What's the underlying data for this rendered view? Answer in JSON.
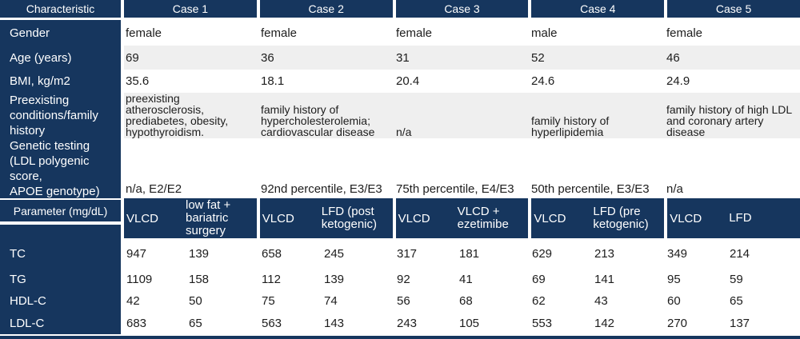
{
  "colors": {
    "navy": "#16365e",
    "stripe": "#efefef",
    "text": "#1d1d1d",
    "background": "#ffffff"
  },
  "chart_data": {
    "type": "table",
    "columns": [
      "Characteristic",
      "Case 1",
      "Case 2",
      "Case 3",
      "Case 4",
      "Case 5"
    ],
    "characteristic_rows": [
      {
        "label": "Gender",
        "values": [
          "female",
          "female",
          "female",
          "male",
          "female"
        ]
      },
      {
        "label": "Age (years)",
        "values": [
          "69",
          "36",
          "31",
          "52",
          "46"
        ]
      },
      {
        "label": "BMI, kg/m2",
        "values": [
          "35.6",
          "18.1",
          "20.4",
          "24.6",
          "24.9"
        ]
      },
      {
        "label": "Preexisting\nconditions/family\nhistory",
        "values": [
          "preexisting\natherosclerosis,\nprediabetes, obesity,\nhypothyroidism.",
          "family history of\nhypercholesterolemia;\ncardiovascular disease",
          "n/a",
          "family history of\nhyperlipidemia",
          "family history of high LDL\nand coronary artery disease"
        ]
      },
      {
        "label": "Genetic testing\n(LDL polygenic score,\nAPOE genotype)",
        "values": [
          "n/a, E2/E2",
          "92nd percentile, E3/E3",
          "75th percentile, E4/E3",
          "50th percentile, E3/E3",
          "n/a"
        ]
      }
    ],
    "parameter_header": {
      "label": "Parameter (mg/dL)",
      "groups": [
        {
          "sub1": "VLCD",
          "sub2": "low fat +\nbariatric\nsurgery"
        },
        {
          "sub1": "VLCD",
          "sub2": "LFD (post\nketogenic)"
        },
        {
          "sub1": "VLCD",
          "sub2": "VLCD +\nezetimibe"
        },
        {
          "sub1": "VLCD",
          "sub2": "LFD (pre\nketogenic)"
        },
        {
          "sub1": "VLCD",
          "sub2": "LFD"
        }
      ]
    },
    "parameter_rows": [
      {
        "label": "TC",
        "values": [
          "947",
          "139",
          "658",
          "245",
          "317",
          "181",
          "629",
          "213",
          "349",
          "214"
        ]
      },
      {
        "label": "TG",
        "values": [
          "1109",
          "158",
          "112",
          "139",
          "92",
          "41",
          "69",
          "141",
          "95",
          "59"
        ]
      },
      {
        "label": "HDL-C",
        "values": [
          "42",
          "50",
          "75",
          "74",
          "56",
          "68",
          "62",
          "43",
          "60",
          "65"
        ]
      },
      {
        "label": "LDL-C",
        "values": [
          "683",
          "65",
          "563",
          "143",
          "243",
          "105",
          "553",
          "142",
          "270",
          "137"
        ]
      }
    ]
  }
}
